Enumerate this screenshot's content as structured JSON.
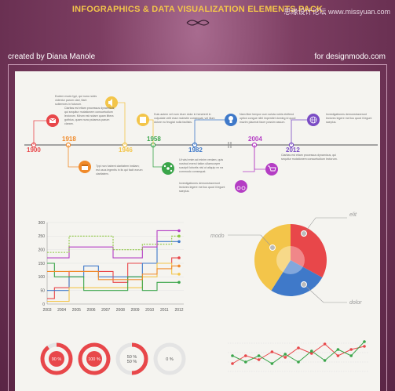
{
  "header": {
    "title": "INFOGRAPHICS & DATA VISUALIZATION ELEMENTS PACK",
    "watermark": "思缘设计论坛 www.missyuan.com",
    "credit_left": "created by Diana Manole",
    "credit_right": "for designmodo.com"
  },
  "timeline": {
    "years": [
      {
        "label": "1900",
        "color": "#e8474a"
      },
      {
        "label": "1918",
        "color": "#f08a2a"
      },
      {
        "label": "1946",
        "color": "#f3c54a"
      },
      {
        "label": "1958",
        "color": "#3aa54a"
      },
      {
        "label": "1982",
        "color": "#3f79c9"
      },
      {
        "label": "2004",
        "color": "#b43dc4"
      },
      {
        "label": "2012",
        "color": "#7a4cc4"
      }
    ],
    "notes": [
      "Eodem modo typi, qui nunc nobis videntur parum clari, fiant sollemnes in futurum.",
      "Claritas est etiam processus dynamicus, qui sequitur mutationem consuetudium lectorum. Mirum est notare quam littera gothica, quam nunc putamus parum claram.",
      "Typi non habent claritatem insitam; est usus legentis in iis qui facit eorum claritatem.",
      "Duis autem vel eum iriure dolor in hendrerit in vulputate velit esse molestie consequat, vel illum dolore eu feugiat nulla facilisis.",
      "Ut wisi enim ad minim veniam, quis nostrud exerci tation ullamcorper suscipit lobortis nisl ut aliquip ex ea commodo consequat.",
      "Investigationes demonstraverunt lectores legere me lius quod ii legunt saepius.",
      "Nam liber tempor cum soluta nobis eleifend option congue nihil imperdiet doming id quod mazim placerat facer possim assum.",
      "Investigationes demonstraverunt lectores legere me lius quod ii legunt saepius.",
      "Claritas est etiam processus dynamicus, qui sequitur mutationem consuetudium lectorum."
    ]
  },
  "line_chart": {
    "chart_data": {
      "type": "line",
      "x": [
        "2003",
        "2004",
        "2005",
        "2006",
        "2007",
        "2008",
        "2009",
        "2010",
        "2011",
        "2012"
      ],
      "ylim": [
        0,
        300
      ],
      "yticks": [
        "0",
        "50",
        "100",
        "150",
        "200",
        "250",
        "300"
      ],
      "series": [
        {
          "color": "#e8474a",
          "values": [
            20,
            60,
            120,
            120,
            120,
            80,
            150,
            150,
            150,
            170
          ]
        },
        {
          "color": "#3f79c9",
          "values": [
            50,
            50,
            100,
            140,
            100,
            100,
            100,
            150,
            230,
            230
          ]
        },
        {
          "color": "#f3c54a",
          "values": [
            10,
            10,
            60,
            60,
            60,
            60,
            60,
            100,
            150,
            110
          ]
        },
        {
          "color": "#3aa54a",
          "values": [
            150,
            100,
            100,
            50,
            50,
            50,
            100,
            50,
            80,
            80
          ]
        },
        {
          "color": "#b43dc4",
          "values": [
            170,
            170,
            210,
            210,
            210,
            170,
            170,
            210,
            270,
            270
          ]
        },
        {
          "color": "#8cc63f",
          "values": [
            190,
            190,
            250,
            250,
            250,
            200,
            200,
            220,
            220,
            250
          ],
          "dashed": true
        },
        {
          "color": "#f08a2a",
          "values": [
            120,
            120,
            120,
            120,
            90,
            90,
            90,
            110,
            130,
            140
          ]
        }
      ]
    }
  },
  "pie": {
    "labels": {
      "left": "modo",
      "top": "elit",
      "bottom": "dolor"
    },
    "chart_data": {
      "type": "pie",
      "slices": [
        {
          "color": "#e8474a",
          "value": 33
        },
        {
          "color": "#3f79c9",
          "value": 26
        },
        {
          "color": "#f3c54a",
          "value": 41
        }
      ]
    }
  },
  "donuts": [
    {
      "value": 90,
      "label": "90 %",
      "filled": true
    },
    {
      "value": 100,
      "label": "100 %",
      "filled": true
    },
    {
      "value": 50,
      "label": "50 %\n50 %",
      "filled": false
    },
    {
      "value": 0,
      "label": "0 %",
      "filled": false
    }
  ],
  "mini_chart": {
    "chart_data": {
      "type": "line",
      "series": [
        {
          "color": "#e8474a",
          "values": [
            20,
            30,
            25,
            35,
            28,
            40,
            33,
            45,
            30,
            38,
            42
          ]
        },
        {
          "color": "#3aa54a",
          "values": [
            30,
            22,
            30,
            20,
            32,
            22,
            36,
            24,
            38,
            30,
            48
          ]
        }
      ]
    }
  }
}
